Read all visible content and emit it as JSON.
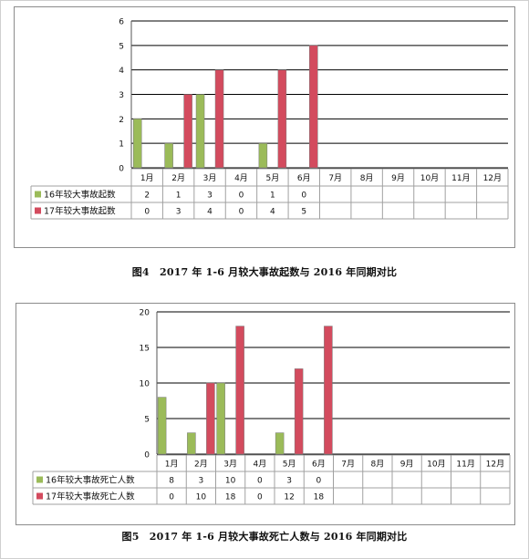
{
  "colors": {
    "series_green": "#9bbb59",
    "series_red": "#d34b5e",
    "grid": "#000000",
    "table_line": "#a0a0a0",
    "text": "#111111"
  },
  "chart_data": [
    {
      "type": "bar",
      "categories": [
        "1月",
        "2月",
        "3月",
        "4月",
        "5月",
        "6月",
        "7月",
        "8月",
        "9月",
        "10月",
        "11月",
        "12月"
      ],
      "series": [
        {
          "name": "16年较大事故起数",
          "values": [
            2,
            1,
            3,
            0,
            1,
            0,
            null,
            null,
            null,
            null,
            null,
            null
          ]
        },
        {
          "name": "17年较大事故起数",
          "values": [
            0,
            3,
            4,
            0,
            4,
            5,
            null,
            null,
            null,
            null,
            null,
            null
          ]
        }
      ],
      "ylim": [
        0,
        6
      ],
      "yticks": [
        0,
        1,
        2,
        3,
        4,
        5,
        6
      ],
      "grid": true,
      "legend": "data-table",
      "caption": "图4　2017 年 1-6 月较大事故起数与 2016 年同期对比"
    },
    {
      "type": "bar",
      "categories": [
        "1月",
        "2月",
        "3月",
        "4月",
        "5月",
        "6月",
        "7月",
        "8月",
        "9月",
        "10月",
        "11月",
        "12月"
      ],
      "series": [
        {
          "name": "16年较大事故死亡人数",
          "values": [
            8,
            3,
            10,
            0,
            3,
            0,
            null,
            null,
            null,
            null,
            null,
            null
          ]
        },
        {
          "name": "17年较大事故死亡人数",
          "values": [
            0,
            10,
            18,
            0,
            12,
            18,
            null,
            null,
            null,
            null,
            null,
            null
          ]
        }
      ],
      "ylim": [
        0,
        20
      ],
      "yticks": [
        0,
        5,
        10,
        15,
        20
      ],
      "grid": true,
      "legend": "data-table",
      "caption": "图5　2017 年 1-6 月较大事故死亡人数与 2016 年同期对比"
    }
  ]
}
